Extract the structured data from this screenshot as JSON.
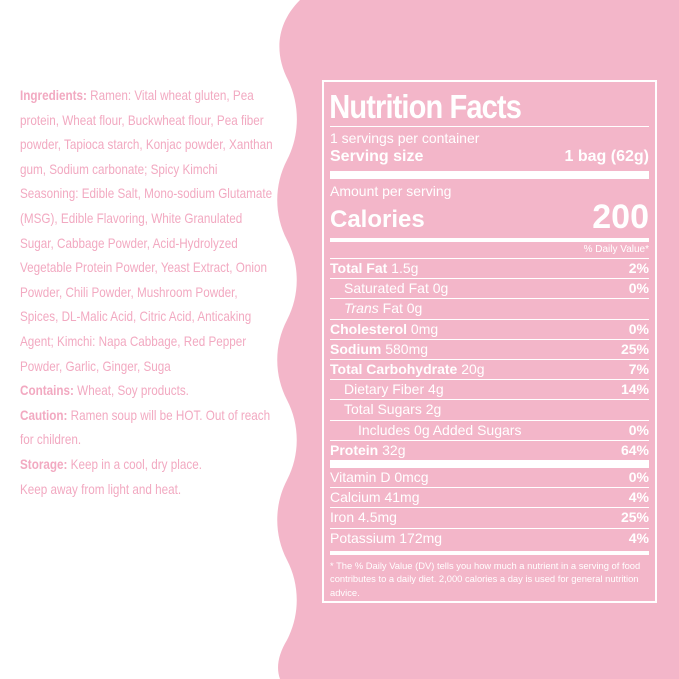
{
  "colors": {
    "pink": "#f3b6c9",
    "ingredient_text": "#f2a9c1",
    "panel_text": "#ffffff"
  },
  "ingredients": {
    "ingredients_label": "Ingredients:",
    "ingredients_text": " Ramen: Vital wheat gluten, Pea protein, Wheat flour, Buckwheat flour, Pea fiber powder, Tapioca starch, Konjac powder, Xanthan gum, Sodium carbonate; Spicy Kimchi Seasoning: Edible Salt, Mono-sodium Glutamate (MSG), Edible Flavoring, White Granulated Sugar, Cabbage Powder, Acid-Hydrolyzed Vegetable Protein Powder, Yeast Extract, Onion Powder, Chili Powder, Mushroom Powder, Spices, DL-Malic Acid, Citric Acid, Anticaking Agent; Kimchi: Napa Cabbage, Red Pepper Powder, Garlic, Ginger, Suga",
    "contains_label": "Contains:",
    "contains_text": "  Wheat, Soy products.",
    "caution_label": "Caution:",
    "caution_text": "  Ramen soup will be HOT. Out of reach for children.",
    "storage_label": "Storage:",
    "storage_text": " Keep in a cool, dry place.",
    "storage_text2": " Keep away from light and heat."
  },
  "nutrition": {
    "title": "Nutrition Facts",
    "servings_per_container": "1 servings per container",
    "serving_size_label": "Serving size",
    "serving_size_value": "1 bag (62g)",
    "amount_per_serving": "Amount per serving",
    "calories_label": "Calories",
    "calories_value": "200",
    "dv_header": "% Daily Value*",
    "rows": [
      {
        "name": "Total Fat",
        "amount": " 1.5g",
        "dv": "2%"
      },
      {
        "name": "Saturated Fat",
        "amount": " 0g",
        "dv": "0%"
      },
      {
        "name": "Trans",
        "amount": " Fat 0g",
        "dv": ""
      },
      {
        "name": "Cholesterol",
        "amount": " 0mg",
        "dv": "0%"
      },
      {
        "name": "Sodium",
        "amount": " 580mg",
        "dv": "25%"
      },
      {
        "name": "Total Carbohydrate",
        "amount": " 20g",
        "dv": "7%"
      },
      {
        "name": "Dietary Fiber",
        "amount": " 4g",
        "dv": "14%"
      },
      {
        "name": "Total Sugars",
        "amount": " 2g",
        "dv": ""
      },
      {
        "name": "Includes 0g Added Sugars",
        "amount": "",
        "dv": "0%"
      },
      {
        "name": "Protein",
        "amount": " 32g",
        "dv": "64%"
      }
    ],
    "vitamins": [
      {
        "name": "Vitamin D 0mcg",
        "dv": "0%"
      },
      {
        "name": "Calcium 41mg",
        "dv": "4%"
      },
      {
        "name": "Iron 4.5mg",
        "dv": "25%"
      },
      {
        "name": "Potassium 172mg",
        "dv": "4%"
      }
    ],
    "footnote": "* The % Daily Value (DV) tells you how much a nutrient in a serving of food contributes to a daily diet. 2,000 calories a day is used for general nutrition advice."
  }
}
